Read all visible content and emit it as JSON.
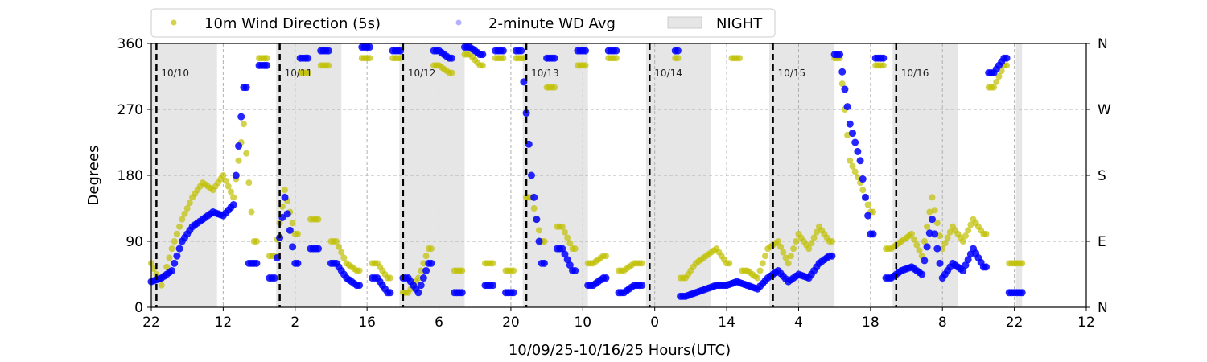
{
  "chart_data": {
    "type": "scatter",
    "xlabel": "10/09/25-10/16/25  Hours(UTC)",
    "ylabel": "Degrees",
    "xlim_hours": [
      0,
      182
    ],
    "ylim": [
      0,
      360
    ],
    "x_tick_labels": [
      "22",
      "12",
      "2",
      "16",
      "6",
      "20",
      "10",
      "0",
      "14",
      "4",
      "18",
      "8",
      "22",
      "12"
    ],
    "x_tick_hours": [
      0,
      14,
      28,
      42,
      56,
      70,
      84,
      98,
      112,
      126,
      140,
      154,
      168,
      182
    ],
    "y_ticks": [
      0,
      90,
      180,
      270,
      360
    ],
    "y_right_labels": [
      "N",
      "E",
      "S",
      "W",
      "N"
    ],
    "grid": true,
    "legend_placement": "top-left-outside",
    "legend": [
      {
        "label": "10m Wind Direction (5s)",
        "color": "#bfbf00"
      },
      {
        "label": "2-minute WD Avg",
        "color": "#0000ff"
      },
      {
        "label": "NIGHT",
        "color": "#e6e6e6"
      }
    ],
    "day_markers": [
      {
        "hour": 1,
        "label": "10/10"
      },
      {
        "hour": 25,
        "label": "10/11"
      },
      {
        "hour": 49,
        "label": "10/12"
      },
      {
        "hour": 73,
        "label": "10/13"
      },
      {
        "hour": 97,
        "label": "10/14"
      },
      {
        "hour": 121,
        "label": "10/15"
      },
      {
        "hour": 145,
        "label": "10/16"
      }
    ],
    "night_periods_hours": [
      [
        0,
        12.8
      ],
      [
        24.3,
        37
      ],
      [
        48.3,
        61
      ],
      [
        72.3,
        85
      ],
      [
        96.3,
        109
      ],
      [
        120.3,
        133
      ],
      [
        144.3,
        157
      ],
      [
        168.3,
        169.5
      ]
    ],
    "x_step_hours": 2,
    "series": [
      {
        "name": "10m Wind Direction (5s)",
        "color": "#bfbf00",
        "values": [
          60,
          30,
          80,
          120,
          150,
          170,
          160,
          180,
          150,
          250,
          90,
          340,
          70,
          160,
          100,
          320,
          120,
          330,
          90,
          60,
          50,
          340,
          60,
          40,
          340,
          20,
          40,
          80,
          330,
          320,
          50,
          345,
          330,
          60,
          340,
          50,
          340,
          150,
          90,
          300,
          110,
          80,
          330,
          60,
          70,
          340,
          50,
          60,
          null,
          null,
          null,
          340,
          40,
          60,
          70,
          80,
          60,
          340,
          50,
          40,
          80,
          90,
          60,
          100,
          80,
          110,
          90,
          340,
          200,
          170,
          130,
          330,
          80,
          90,
          100,
          70,
          150,
          80,
          110,
          90,
          120,
          100,
          300,
          330,
          60
        ]
      },
      {
        "name": "2-minute WD Avg",
        "color": "#0000ff",
        "values": [
          35,
          40,
          50,
          90,
          110,
          120,
          130,
          125,
          140,
          300,
          60,
          330,
          40,
          150,
          60,
          340,
          80,
          350,
          60,
          40,
          30,
          355,
          40,
          20,
          350,
          40,
          20,
          60,
          350,
          340,
          20,
          355,
          345,
          30,
          350,
          20,
          350,
          180,
          60,
          340,
          80,
          50,
          350,
          30,
          40,
          350,
          20,
          30,
          null,
          null,
          null,
          350,
          15,
          20,
          25,
          30,
          30,
          35,
          30,
          25,
          40,
          50,
          35,
          45,
          40,
          60,
          70,
          345,
          250,
          200,
          100,
          340,
          40,
          50,
          55,
          45,
          120,
          40,
          60,
          50,
          80,
          55,
          320,
          340,
          20
        ]
      }
    ]
  }
}
